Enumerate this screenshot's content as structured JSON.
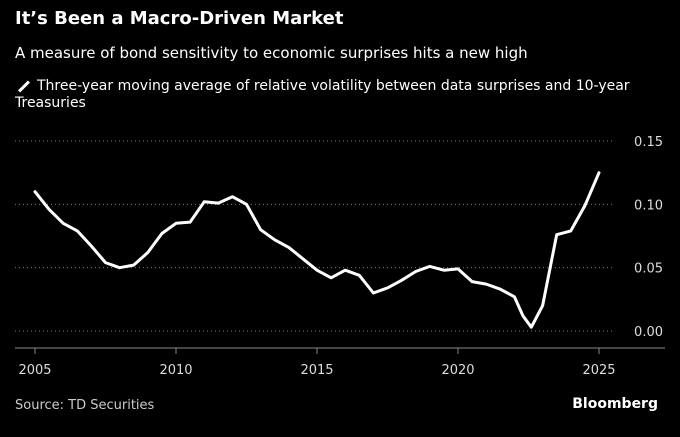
{
  "title": "It’s Been a Macro-Driven Market",
  "subtitle": "A measure of bond sensitivity to economic surprises hits a new high",
  "source": "Source: TD Securities",
  "brand": "Bloomberg",
  "chart_data": {
    "type": "line",
    "legend": "Three-year moving average of relative volatility between data surprises and 10-year Treasuries",
    "xlim": [
      2005,
      2027
    ],
    "ylim": [
      0,
      0.15
    ],
    "x_ticks": [
      2005,
      2010,
      2015,
      2020,
      2025
    ],
    "y_ticks": [
      0,
      0.05,
      0.1,
      0.15
    ],
    "y_tick_labels": [
      "0.00",
      "0.05",
      "0.10",
      "0.15"
    ],
    "grid": true,
    "line_color": "#ffffff",
    "series": [
      {
        "name": "Three-year moving average of relative volatility between data surprises and 10-year Treasuries",
        "x": [
          2005.0,
          2005.5,
          2006.0,
          2006.5,
          2007.0,
          2007.5,
          2008.0,
          2008.5,
          2009.0,
          2009.5,
          2010.0,
          2010.5,
          2011.0,
          2011.5,
          2012.0,
          2012.5,
          2013.0,
          2013.5,
          2014.0,
          2014.5,
          2015.0,
          2015.5,
          2016.0,
          2016.5,
          2017.0,
          2017.5,
          2018.0,
          2018.5,
          2019.0,
          2019.5,
          2020.0,
          2020.5,
          2021.0,
          2021.5,
          2022.0,
          2022.3,
          2022.6,
          2023.0,
          2023.5,
          2024.0,
          2024.5,
          2025.0
        ],
        "y": [
          0.11,
          0.096,
          0.085,
          0.079,
          0.067,
          0.054,
          0.05,
          0.052,
          0.062,
          0.077,
          0.085,
          0.086,
          0.102,
          0.101,
          0.106,
          0.1,
          0.08,
          0.072,
          0.066,
          0.057,
          0.048,
          0.042,
          0.048,
          0.044,
          0.03,
          0.034,
          0.04,
          0.047,
          0.051,
          0.048,
          0.049,
          0.039,
          0.037,
          0.033,
          0.027,
          0.012,
          0.003,
          0.02,
          0.076,
          0.079,
          0.099,
          0.125
        ]
      }
    ]
  }
}
